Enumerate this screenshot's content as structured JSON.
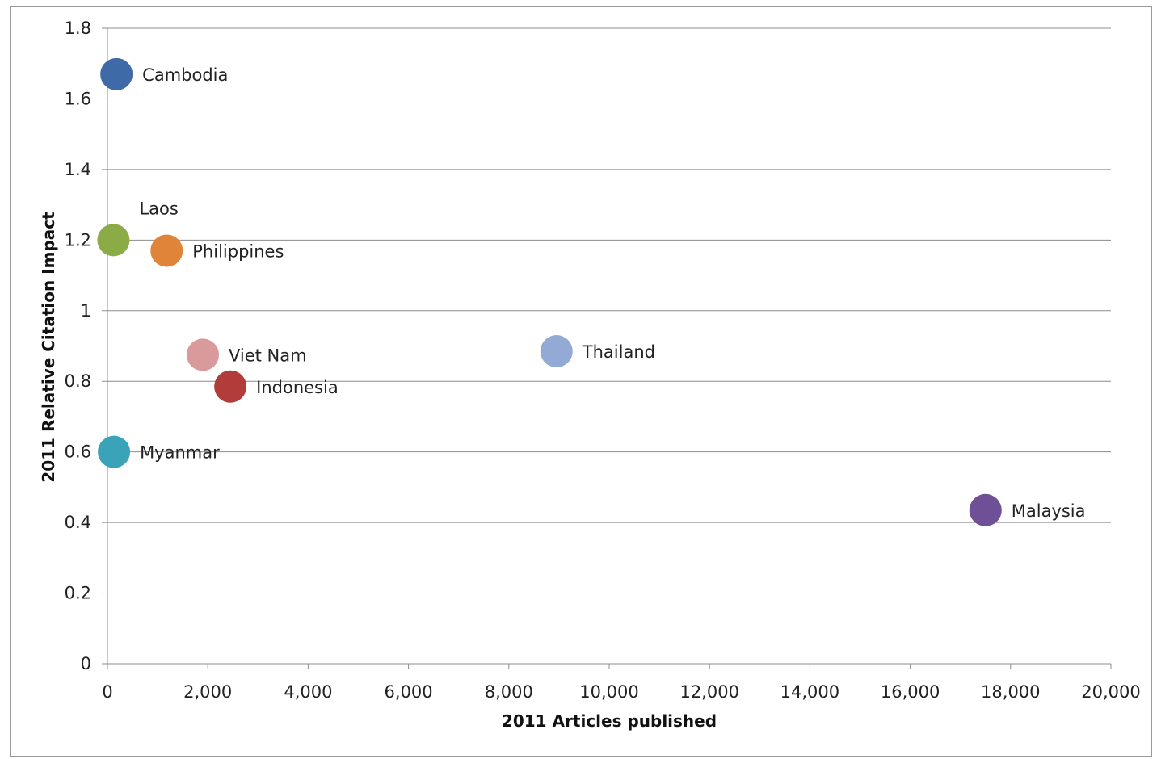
{
  "chart_data": {
    "type": "scatter",
    "title": "",
    "xlabel": "2011 Articles published",
    "ylabel": "2011 Relative Citation Impact",
    "xlim": [
      0,
      20000
    ],
    "ylim": [
      0,
      1.8
    ],
    "x_ticks": [
      "0",
      "2,000",
      "4,000",
      "6,000",
      "8,000",
      "10,000",
      "12,000",
      "14,000",
      "16,000",
      "18,000",
      "20,000"
    ],
    "x_tick_values": [
      0,
      2000,
      4000,
      6000,
      8000,
      10000,
      12000,
      14000,
      16000,
      18000,
      20000
    ],
    "y_ticks": [
      "0",
      "0.2",
      "0.4",
      "0.6",
      "0.8",
      "1",
      "1.2",
      "1.4",
      "1.6",
      "1.8"
    ],
    "y_tick_values": [
      0,
      0.2,
      0.4,
      0.6,
      0.8,
      1.0,
      1.2,
      1.4,
      1.6,
      1.8
    ],
    "grid": "horizontal",
    "legend": "none",
    "points": [
      {
        "label": "Cambodia",
        "x": 180,
        "y": 1.67,
        "color": "#3f6aa8"
      },
      {
        "label": "Laos",
        "x": 120,
        "y": 1.2,
        "color": "#8aab46"
      },
      {
        "label": "Philippines",
        "x": 1180,
        "y": 1.17,
        "color": "#e0843a"
      },
      {
        "label": "Viet Nam",
        "x": 1900,
        "y": 0.875,
        "color": "#d89a9a"
      },
      {
        "label": "Indonesia",
        "x": 2450,
        "y": 0.785,
        "color": "#b13c39"
      },
      {
        "label": "Thailand",
        "x": 8950,
        "y": 0.885,
        "color": "#93aad6"
      },
      {
        "label": "Myanmar",
        "x": 130,
        "y": 0.6,
        "color": "#3aa3b8"
      },
      {
        "label": "Malaysia",
        "x": 17500,
        "y": 0.435,
        "color": "#6f4f95"
      }
    ]
  }
}
